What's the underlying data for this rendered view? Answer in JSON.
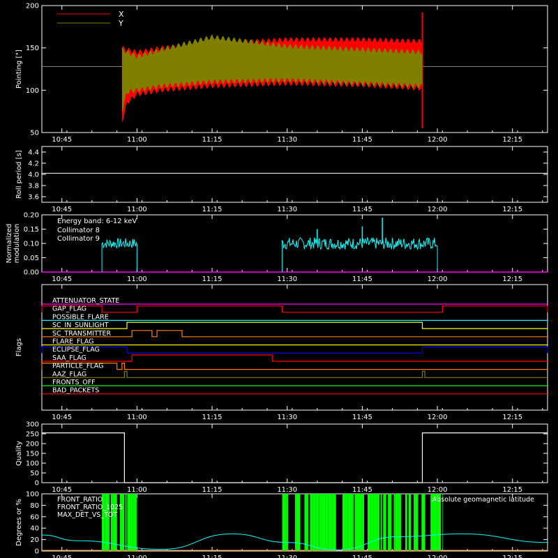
{
  "x_ticks": [
    "10:45",
    "11:00",
    "11:15",
    "11:30",
    "11:45",
    "12:00",
    "12:15"
  ],
  "chart_data": [
    {
      "type": "line",
      "ylabel": "Pointing [\"]",
      "ylim": [
        50,
        200
      ],
      "yticks": [
        "50",
        "100",
        "150",
        "200"
      ],
      "legend": [
        {
          "name": "X",
          "color": "#ff0000"
        },
        {
          "name": "Y",
          "color": "#808000"
        }
      ],
      "reference_level": 128,
      "series": [
        {
          "name": "X",
          "color": "#ff0000",
          "band": {
            "x": [
              "10:57",
              "10:58",
              "11:00",
              "11:05",
              "11:15",
              "11:30",
              "11:45",
              "11:57"
            ],
            "upper": [
              150,
              148,
              145,
              150,
              155,
              160,
              160,
              158
            ],
            "lower": [
              62,
              85,
              95,
              100,
              105,
              108,
              106,
              102
            ]
          },
          "spike": {
            "x": "11:57",
            "max": 192,
            "min": 55
          }
        },
        {
          "name": "Y",
          "color": "#808000",
          "band": {
            "x": [
              "10:57",
              "10:58",
              "11:00",
              "11:05",
              "11:15",
              "11:30",
              "11:45",
              "11:57"
            ],
            "upper": [
              148,
              145,
              140,
              148,
              163,
              152,
              148,
              145
            ],
            "lower": [
              75,
              98,
              100,
              105,
              110,
              112,
              108,
              105
            ]
          }
        }
      ]
    },
    {
      "type": "line",
      "ylabel": "Roll period [s]",
      "ylim": [
        3.5,
        4.5
      ],
      "yticks": [
        "3.6",
        "3.8",
        "4.0",
        "4.2",
        "4.4"
      ],
      "series": [
        {
          "x": [
            "10:41",
            "12:22"
          ],
          "y": [
            4.02,
            4.02
          ],
          "color": "#ffffff"
        }
      ]
    },
    {
      "type": "line",
      "ylabel": "Normalized modulation",
      "ylabel_lines": [
        "Normalized",
        "modulation"
      ],
      "ylim": [
        0,
        0.2
      ],
      "yticks": [
        "0.00",
        "0.05",
        "0.10",
        "0.15",
        "0.20"
      ],
      "legend_title": "Energy band: 6-12 keV",
      "legend": [
        {
          "name": "Collimator 8",
          "color": "#00ffff"
        },
        {
          "name": "Collimator 9",
          "color": "#ff00ff"
        }
      ],
      "series": [
        {
          "name": "Collimator 8",
          "color": "#00ffff",
          "segments": [
            {
              "start": "10:53",
              "end": "11:00",
              "mean": 0.1,
              "spread": 0.03
            },
            {
              "start": "11:29",
              "end": "12:00",
              "mean": 0.1,
              "spread": 0.035
            }
          ],
          "peaks": [
            {
              "x": "11:49",
              "y": 0.19
            },
            {
              "x": "11:45",
              "y": 0.16
            },
            {
              "x": "11:36",
              "y": 0.15
            }
          ]
        },
        {
          "name": "Collimator 9",
          "color": "#ff00ff",
          "level": 0.0
        }
      ]
    },
    {
      "type": "line",
      "ylabel": "Flags",
      "flags": [
        {
          "name": "ATTENUATOR_STATE",
          "color": "#ff00ff",
          "high": []
        },
        {
          "name": "GAP_FLAG",
          "color": "#ff0000",
          "high": [
            [
              "10:41",
              "10:53"
            ],
            [
              "11:00",
              "11:29"
            ],
            [
              "12:01",
              "12:22"
            ]
          ]
        },
        {
          "name": "POSSIBLE_FLARE",
          "color": "#00ffff",
          "high": []
        },
        {
          "name": "SC_IN_SUNLIGHT",
          "color": "#ffff00",
          "high": [
            [
              "10:58",
              "11:57"
            ]
          ]
        },
        {
          "name": "SC_TRANSMITTER",
          "color": "#ff8000",
          "high": [
            [
              "10:59",
              "11:03"
            ],
            [
              "11:04",
              "11:09"
            ]
          ]
        },
        {
          "name": "FLARE_FLAG",
          "color": "#ffff00",
          "high": []
        },
        {
          "name": "ECLIPSE_FLAG",
          "color": "#0000ff",
          "high": [
            [
              "10:41",
              "10:58"
            ],
            [
              "11:57",
              "12:22"
            ]
          ]
        },
        {
          "name": "SAA_FLAG",
          "color": "#ff0000",
          "high": [
            [
              "10:59",
              "11:27"
            ]
          ]
        },
        {
          "name": "PARTICLE_FLAG",
          "color": "#ff8000",
          "high": [
            [
              "10:41",
              "10:56"
            ],
            [
              "10:57",
              "10:57.5"
            ]
          ]
        },
        {
          "name": "AAZ_FLAG",
          "color": "#808000",
          "high": [
            [
              "10:57.5",
              "10:58"
            ],
            [
              "11:57",
              "11:57.5"
            ]
          ]
        },
        {
          "name": "FRONTS_OFF",
          "color": "#00ff00",
          "high": []
        },
        {
          "name": "BAD_PACKETS",
          "color": "#ff0000",
          "high": []
        }
      ]
    },
    {
      "type": "line",
      "ylabel": "Quality",
      "ylim": [
        0,
        300
      ],
      "yticks": [
        "0",
        "50",
        "100",
        "150",
        "200",
        "250",
        "300"
      ],
      "series": [
        {
          "color": "#ffffff",
          "x": [
            "10:41",
            "10:57.5",
            "10:57.5",
            "11:57",
            "11:57",
            "12:22"
          ],
          "y": [
            255,
            255,
            0,
            0,
            255,
            255
          ]
        }
      ]
    },
    {
      "type": "line",
      "ylabel": "Degrees or %",
      "ylim": [
        0,
        100
      ],
      "yticks": [
        "0",
        "20",
        "40",
        "60",
        "80",
        "100"
      ],
      "legend": [
        {
          "name": "FRONT_RATIO",
          "color": "#ffff00"
        },
        {
          "name": "FRONT_RATIO_1025",
          "color": "#00ff00"
        },
        {
          "name": "MAX_DET_VS_TOT",
          "color": "#ff8000"
        }
      ],
      "legend_right": {
        "name": "Absolute geomagnetic latitude",
        "color": "#00ffff"
      },
      "series": [
        {
          "name": "FRONT_RATIO_1025",
          "color": "#00ff00",
          "bursts": [
            [
              "10:53",
              "11:00"
            ],
            [
              "11:29",
              "12:01"
            ]
          ]
        },
        {
          "name": "Absolute geomagnetic latitude",
          "color": "#00ffff",
          "curve": {
            "x": [
              "10:41",
              "10:48",
              "11:05",
              "11:19",
              "11:30",
              "11:40",
              "11:52",
              "12:05",
              "12:22"
            ],
            "y": [
              28,
              18,
              3,
              30,
              15,
              2,
              25,
              30,
              15
            ]
          }
        }
      ]
    }
  ]
}
